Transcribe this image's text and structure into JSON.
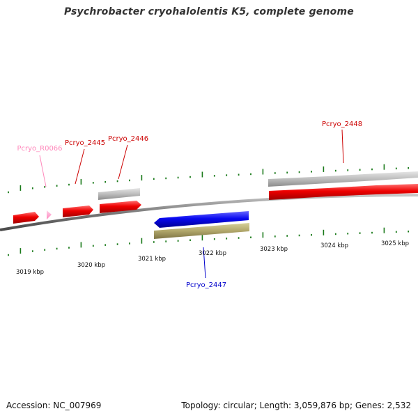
{
  "header": {
    "title": "Psychrobacter cryohalolentis K5, complete genome"
  },
  "map": {
    "axis_labels": [
      "3019 kbp",
      "3020 kbp",
      "3021 kbp",
      "3022 kbp",
      "3023 kbp",
      "3024 kbp",
      "3025 kbp"
    ],
    "gene_labels": {
      "r0066": "Pcryo_R0066",
      "g2445": "Pcryo_2445",
      "g2446": "Pcryo_2446",
      "g2447": "Pcryo_2447",
      "g2448": "Pcryo_2448"
    },
    "colors": {
      "backbone": "#7a7a7a",
      "tick": "#1a7a1a",
      "gene_forward": "#e8001a",
      "gene_reverse": "#1010e0",
      "rna": "#ff99cc",
      "gc_high": "#b4b4b4",
      "gc_low": "#a8a068",
      "label_forward": "#cc0000",
      "label_reverse": "#0000cc",
      "label_rna": "#ff88bb"
    }
  },
  "footer": {
    "accession": "Accession: NC_007969",
    "summary": "Topology: circular; Length: 3,059,876 bp; Genes: 2,532"
  }
}
